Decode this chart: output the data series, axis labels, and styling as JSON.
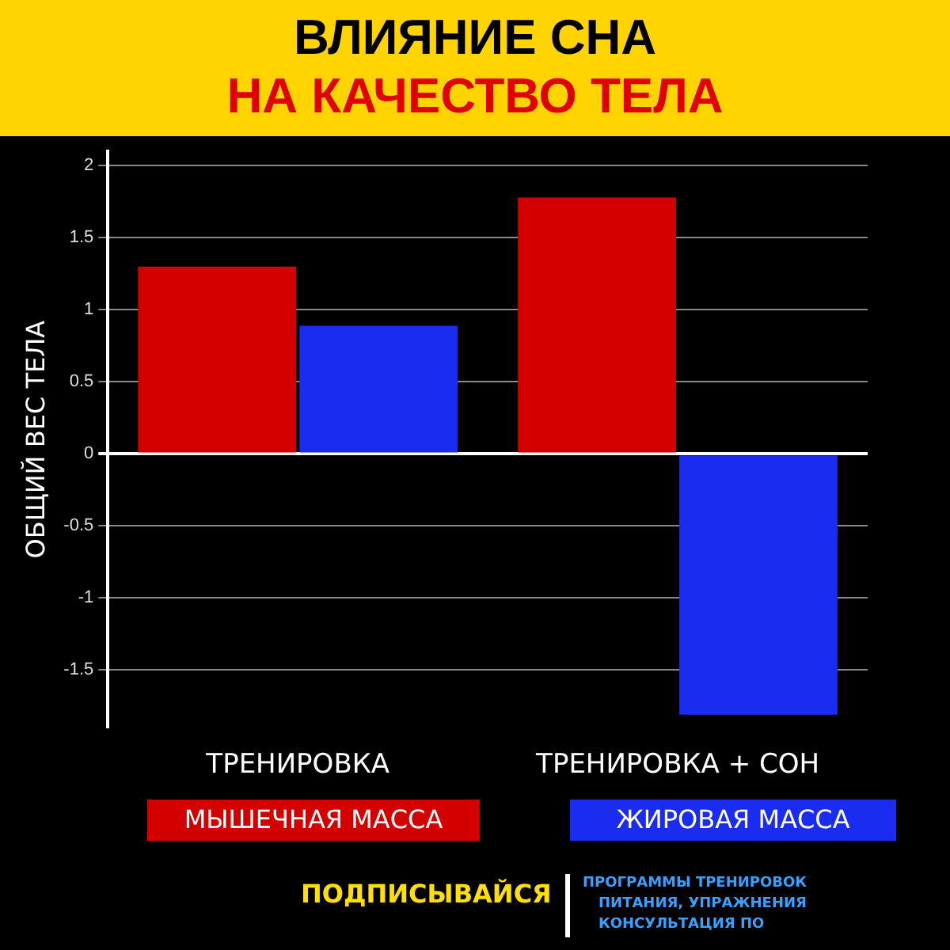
{
  "chart_data": {
    "type": "bar",
    "title": "ВЛИЯНИЕ СНА",
    "subtitle": "НА КАЧЕСТВО ТЕЛА",
    "ylabel": "ОБЩИЙ ВЕС ТЕЛА",
    "categories": [
      "ТРЕНИРОВКА",
      "ТРЕНИРОВКА + СОН"
    ],
    "series": [
      {
        "name": "МЫШЕЧНАЯ МАССА",
        "color": "#d40000",
        "values": [
          1.3,
          1.78
        ]
      },
      {
        "name": "ЖИРОВАЯ МАССА",
        "color": "#1a2cf0",
        "values": [
          0.89,
          -1.81
        ]
      }
    ],
    "ylim": [
      -1.9,
      2.1
    ],
    "yticks": [
      -1.5,
      -1,
      -0.5,
      0,
      0.5,
      1,
      1.5,
      2
    ],
    "grid": "y",
    "legend": "bottom",
    "annotations": [
      "ПОДПИСЫВАЙСЯ",
      "ПРОГРАММЫ ТРЕНИРОВОК",
      "ПИТАНИЯ, УПРАЖНЕНИЯ",
      "КОНСУЛЬТАЦИЯ ПО"
    ]
  }
}
